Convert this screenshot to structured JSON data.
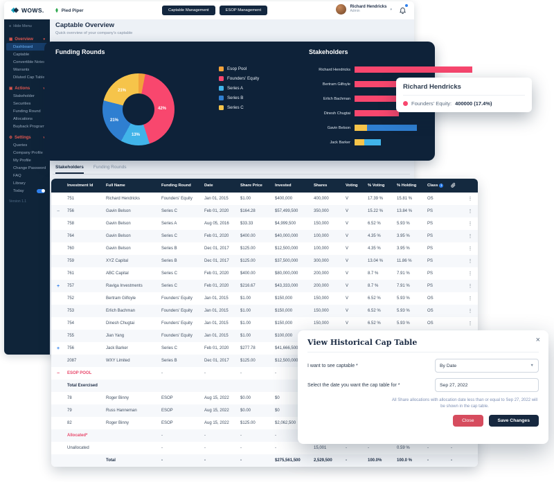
{
  "colors": {
    "navy": "#0E2239",
    "table_header_navy": "#14293F",
    "founders_pink": "#F8476E",
    "esop_orange": "#F2A23B",
    "series_a_light_blue": "#41B4E9",
    "series_b_blue": "#2F7FD1",
    "series_c_yellow": "#F6C44A",
    "sidebar_section_red": "#E2574F",
    "active_blue": "#2F80ED",
    "close_button_red": "#D64C5E"
  },
  "header": {
    "logo_text": "WOWS.",
    "company_name": "Pied Piper",
    "nav_buttons": [
      "Captable Management",
      "ESOP Management"
    ],
    "user_name": "Richard Hendricks",
    "user_role": "Admin"
  },
  "sidebar": {
    "hide_menu_label": "Hide Menu",
    "version_label": "Version 1.1",
    "sections": [
      {
        "label": "Overview",
        "icon": "grid",
        "items": [
          {
            "label": "Dashboard",
            "active": true
          },
          {
            "label": "Captable"
          },
          {
            "label": "Convertible Notes"
          },
          {
            "label": "Warrants"
          },
          {
            "label": "Diluted Cap Table"
          }
        ]
      },
      {
        "label": "Actions",
        "icon": "actions",
        "items": [
          {
            "label": "Stakeholder"
          },
          {
            "label": "Securities"
          },
          {
            "label": "Funding Round"
          },
          {
            "label": "Allocations"
          },
          {
            "label": "Buyback Programs"
          }
        ]
      },
      {
        "label": "Settings",
        "icon": "gear",
        "items": [
          {
            "label": "Queries"
          },
          {
            "label": "Company Profile"
          },
          {
            "label": "My Profile"
          },
          {
            "label": "Change Password"
          },
          {
            "label": "FAQ"
          },
          {
            "label": "Library"
          },
          {
            "label": "Today",
            "toggle": true
          }
        ]
      }
    ]
  },
  "page": {
    "title": "Captable Overview",
    "subtitle": "Quick overview of your company's captable"
  },
  "chart_data": [
    {
      "type": "pie",
      "title": "Funding Rounds",
      "labels": [
        "Esop Pool",
        "Founders' Equity",
        "Series A",
        "Series B",
        "Series C"
      ],
      "values": [
        3,
        42,
        13,
        21,
        21
      ],
      "colors": [
        "#F2A23B",
        "#F8476E",
        "#41B4E9",
        "#2F7FD1",
        "#F6C44A"
      ],
      "display_labels": [
        "21%",
        "42%",
        "13%",
        "21%"
      ],
      "legend_position": "right"
    },
    {
      "type": "bar",
      "title": "Stakeholders",
      "orientation": "horizontal",
      "categories": [
        "Richard Hendricks",
        "Bertram Gilfoyle",
        "Erlich Bachman",
        "Dinesh Chugtai",
        "Gavin Belson",
        "Jack Barker"
      ],
      "scale_max": 400000,
      "segments": [
        [
          {
            "name": "Founders' Equity",
            "value": 400000
          }
        ],
        [
          {
            "name": "Founders' Equity",
            "value": 150000
          }
        ],
        [
          {
            "name": "Founders' Equity",
            "value": 150000
          }
        ],
        [
          {
            "name": "Founders' Equity",
            "value": 150000
          }
        ],
        [
          {
            "name": "Series C",
            "value": 42000
          },
          {
            "name": "Series B",
            "value": 170000
          }
        ],
        [
          {
            "name": "Series C",
            "value": 33000
          },
          {
            "name": "Series A",
            "value": 56000
          }
        ]
      ]
    }
  ],
  "tooltip": {
    "title": "Richard Hendricks",
    "series_label": "Founders' Equity:",
    "value": "400000 (17.4%)"
  },
  "tabs": [
    {
      "label": "Stakeholders",
      "active": true
    },
    {
      "label": "Funding Rounds",
      "active": false
    }
  ],
  "table": {
    "columns": [
      "Investment Id",
      "Full Name",
      "Funding Round",
      "Date",
      "Share Price",
      "Invested",
      "Shares",
      "Voting",
      "% Voting",
      "% Holding",
      "Class"
    ],
    "rows": [
      {
        "id": "751",
        "name": "Richard Hendricks",
        "round": "Founders' Equity",
        "date": "Jan 01, 2015",
        "price": "$1.00",
        "invested": "$400,000",
        "shares": "400,000",
        "voting": "V",
        "pctv": "17.39 %",
        "pcth": "15.81 %",
        "cls": "OS",
        "menu": true
      },
      {
        "expand": "minus",
        "id": "756",
        "name": "Gavin Belson",
        "round": "Series C",
        "date": "Feb 01, 2020",
        "price": "$164.28",
        "invested": "$57,499,500",
        "shares": "350,000",
        "voting": "V",
        "pctv": "15.22 %",
        "pcth": "13.84 %",
        "cls": "PS",
        "menu": true
      },
      {
        "id": "758",
        "name": "Gavin Belson",
        "round": "Series A",
        "date": "Aug 05, 2016",
        "price": "$33.33",
        "invested": "$4,999,500",
        "shares": "150,000",
        "voting": "V",
        "pctv": "6.52 %",
        "pcth": "5.93 %",
        "cls": "PS",
        "menu": true
      },
      {
        "id": "764",
        "name": "Gavin Belson",
        "round": "Series C",
        "date": "Feb 01, 2020",
        "price": "$400.00",
        "invested": "$40,000,000",
        "shares": "100,000",
        "voting": "V",
        "pctv": "4.35 %",
        "pcth": "3.95 %",
        "cls": "PS",
        "menu": true
      },
      {
        "id": "760",
        "name": "Gavin Belson",
        "round": "Series B",
        "date": "Dec 01, 2017",
        "price": "$125.00",
        "invested": "$12,500,000",
        "shares": "100,000",
        "voting": "V",
        "pctv": "4.35 %",
        "pcth": "3.95 %",
        "cls": "PS",
        "menu": true
      },
      {
        "id": "759",
        "name": "XYZ Capital",
        "round": "Series B",
        "date": "Dec 01, 2017",
        "price": "$125.00",
        "invested": "$37,500,000",
        "shares": "300,000",
        "voting": "V",
        "pctv": "13.04 %",
        "pcth": "11.86 %",
        "cls": "PS",
        "menu": true
      },
      {
        "id": "761",
        "name": "ABC Capital",
        "round": "Series C",
        "date": "Feb 01, 2020",
        "price": "$400.00",
        "invested": "$80,000,000",
        "shares": "200,000",
        "voting": "V",
        "pctv": "8.7 %",
        "pcth": "7.91 %",
        "cls": "PS",
        "menu": true
      },
      {
        "expand": "plus",
        "id": "757",
        "name": "Raviga Investments",
        "round": "Series C",
        "date": "Feb 01, 2020",
        "price": "$216.67",
        "invested": "$43,333,000",
        "shares": "200,000",
        "voting": "V",
        "pctv": "8.7 %",
        "pcth": "7.91 %",
        "cls": "PS",
        "menu": true
      },
      {
        "id": "752",
        "name": "Bertram Gilfoyle",
        "round": "Founders' Equity",
        "date": "Jan 01, 2015",
        "price": "$1.00",
        "invested": "$150,000",
        "shares": "150,000",
        "voting": "V",
        "pctv": "6.52 %",
        "pcth": "5.93 %",
        "cls": "OS",
        "menu": true
      },
      {
        "id": "753",
        "name": "Erlich Bachman",
        "round": "Founders' Equity",
        "date": "Jan 01, 2015",
        "price": "$1.00",
        "invested": "$150,000",
        "shares": "150,000",
        "voting": "V",
        "pctv": "6.52 %",
        "pcth": "5.93 %",
        "cls": "OS",
        "menu": true
      },
      {
        "id": "754",
        "name": "Dinesh Chugtai",
        "round": "Founders' Equity",
        "date": "Jan 01, 2015",
        "price": "$1.00",
        "invested": "$150,000",
        "shares": "150,000",
        "voting": "V",
        "pctv": "6.52 %",
        "pcth": "5.93 %",
        "cls": "OS",
        "menu": true
      },
      {
        "id": "755",
        "name": "Jian Yang",
        "round": "Founders' Equity",
        "date": "Jan 01, 2015",
        "price": "$1.00",
        "invested": "$100,000",
        "menu": true
      },
      {
        "expand": "plus",
        "id": "756",
        "name": "Jack Barker",
        "round": "Series C",
        "date": "Feb 01, 2020",
        "price": "$277.78",
        "invested": "$41,666,500",
        "menu": true
      },
      {
        "id": "2087",
        "name": "WXY Limited",
        "round": "Series B",
        "date": "Dec 01, 2017",
        "price": "$125.00",
        "invested": "$12,500,000",
        "menu": true
      },
      {
        "expand": "minus-pink",
        "id": "ESOP POOL",
        "style": "pink",
        "round": "-",
        "date": "-",
        "price": "-",
        "invested": "-"
      },
      {
        "id": "Total Exercised",
        "style": "boldname"
      },
      {
        "id": "78",
        "name": "Roger Binny",
        "round": "ESOP",
        "date": "Aug 15, 2022",
        "price": "$0.00",
        "invested": "$0"
      },
      {
        "id": "79",
        "name": "Russ Hanneman",
        "round": "ESOP",
        "date": "Aug 15, 2022",
        "price": "$0.00",
        "invested": "$0"
      },
      {
        "id": "82",
        "name": "Roger Binny",
        "round": "ESOP",
        "date": "Aug 15, 2022",
        "price": "$125.00",
        "invested": "$2,062,500"
      },
      {
        "id": "Allocated*",
        "style": "pink",
        "round": "-",
        "date": "-",
        "price": "-",
        "invested": "-"
      },
      {
        "id": "Unallocated",
        "round": "-",
        "date": "-",
        "price": "-",
        "invested": "-",
        "shares": "15,001",
        "voting": "-",
        "pctv": "-",
        "pcth": "0.59 %",
        "cls": "-",
        "att": "-"
      },
      {
        "name": "Total",
        "bold": true,
        "round": "-",
        "date": "-",
        "price": "-",
        "invested": "$275,561,500",
        "shares": "2,529,500",
        "voting": "-",
        "pctv": "100.0%",
        "pcth": "100.0 %",
        "cls": "-",
        "att": "-"
      }
    ]
  },
  "modal": {
    "title": "View Historical Cap Table",
    "fields": [
      {
        "label": "I want to see captable *",
        "value": "By Date",
        "type": "select"
      },
      {
        "label": "Select the date you want the cap table for *",
        "value": "Sep 27, 2022",
        "type": "date"
      }
    ],
    "hint": "All Share allocations with allocation date less than or equal to Sep 27, 2022 will be shown in the cap table.",
    "close_label": "Close",
    "save_label": "Save Changes"
  }
}
